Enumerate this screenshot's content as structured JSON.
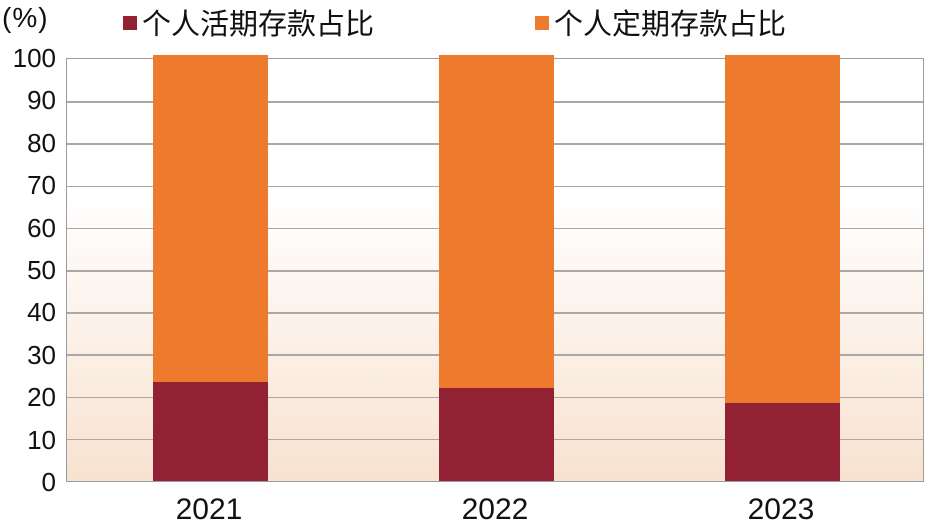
{
  "chart_data": {
    "type": "bar",
    "stacked": true,
    "title": "",
    "unit_label": "(%)",
    "categories": [
      "2021",
      "2022",
      "2023"
    ],
    "series": [
      {
        "name": "个人活期存款占比",
        "color": "#922233",
        "values": [
          23.4,
          22.0,
          18.5
        ]
      },
      {
        "name": "个人定期存款占比",
        "color": "#EE7A2E",
        "values": [
          76.6,
          78.0,
          81.5
        ]
      }
    ],
    "ylim": [
      0,
      100
    ],
    "yticks": [
      0,
      10,
      20,
      30,
      40,
      50,
      60,
      70,
      80,
      90,
      100
    ],
    "grid": true,
    "gridline_color": "#A8A8A8",
    "axis_border_color": "#9C9C9C",
    "legend_position": "top",
    "plot_background_top": "#FFFFFF",
    "plot_background_bottom": "#F8E2D0"
  }
}
